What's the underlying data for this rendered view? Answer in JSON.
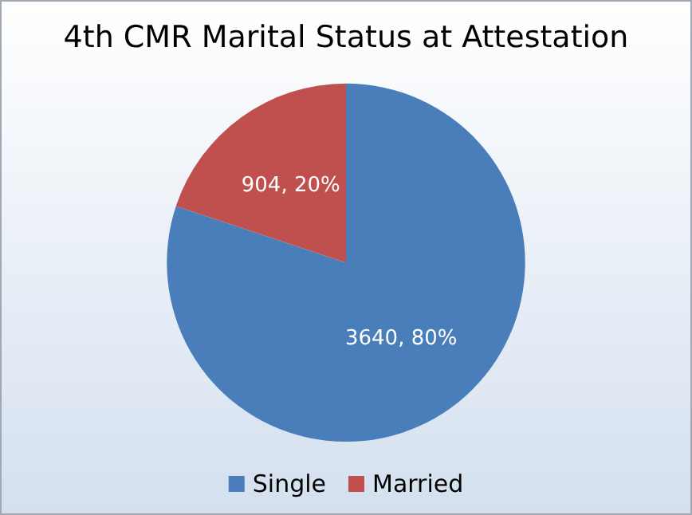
{
  "chart_data": {
    "type": "pie",
    "title": "4th CMR Marital Status at Attestation",
    "categories": [
      "Single",
      "Married"
    ],
    "values": [
      3640,
      904
    ],
    "colors": [
      "#4a7ebb",
      "#c0504d"
    ],
    "value_labels": [
      "3640, 80%",
      "904, 20%"
    ],
    "legend": "bottom"
  }
}
